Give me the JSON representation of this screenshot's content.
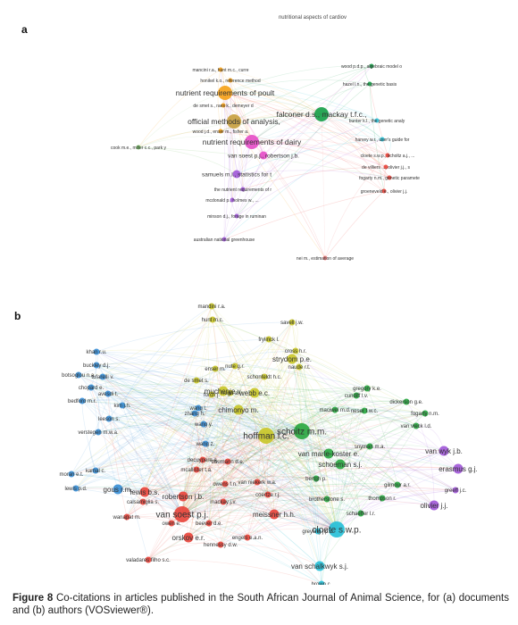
{
  "panels": {
    "a": {
      "letter": "a",
      "top_note": "nutritional aspects of cardiov",
      "nodes": [
        {
          "label": "mancini r.a., hunt m.c., curre",
          "color": "#f5a21a",
          "size": 1,
          "cluster": "orange"
        },
        {
          "label": "honikel k.o., reference method",
          "color": "#f5a21a",
          "size": 1,
          "cluster": "orange"
        },
        {
          "label": "nutrient requirements of poult",
          "color": "#f5a21a",
          "size": 3,
          "cluster": "orange"
        },
        {
          "label": "de smet s., raes k., demeyer d",
          "color": "#f5a21a",
          "size": 1,
          "cluster": "orange"
        },
        {
          "label": "official methods of analysis,",
          "color": "#c8a040",
          "size": 3,
          "cluster": "olive"
        },
        {
          "label": "wood j.d., enser m., fisher a.",
          "color": "#f5a21a",
          "size": 1,
          "cluster": "orange"
        },
        {
          "label": "nutrient requirements of dairy",
          "color": "#e64fc8",
          "size": 3,
          "cluster": "pink"
        },
        {
          "label": "van soest p.j., robertson j.b.",
          "color": "#e64fc8",
          "size": 2,
          "cluster": "pink"
        },
        {
          "label": "samuels m.l., statistics for t",
          "color": "#a259d9",
          "size": 2,
          "cluster": "purple"
        },
        {
          "label": "the nutrient requirements of r",
          "color": "#a259d9",
          "size": 1,
          "cluster": "purple"
        },
        {
          "label": "mcdonald p., holmes w., ...",
          "color": "#a259d9",
          "size": 1,
          "cluster": "purple"
        },
        {
          "label": "minson d.j., forage in ruminan",
          "color": "#a259d9",
          "size": 1,
          "cluster": "purple"
        },
        {
          "label": "australian national greenhouse",
          "color": "#a259d9",
          "size": 1,
          "cluster": "purple"
        },
        {
          "label": "cook m.e., miller c.c., park y",
          "color": "#7bc46a",
          "size": 1,
          "cluster": "lightgreen"
        },
        {
          "label": "wood p.d.p., algebraic model o",
          "color": "#18a04a",
          "size": 1,
          "cluster": "green"
        },
        {
          "label": "hazel l.n., the genetic basis",
          "color": "#18a04a",
          "size": 1,
          "cluster": "green"
        },
        {
          "label": "falconer d.s., mackay t.f.c.,",
          "color": "#18a04a",
          "size": 3,
          "cluster": "green"
        },
        {
          "label": "bunter k.l., the genetic analy",
          "color": "#2dc0d6",
          "size": 1,
          "cluster": "cyan"
        },
        {
          "label": "harvey w.r., user's guide for",
          "color": "#2dc0d6",
          "size": 1,
          "cluster": "cyan"
        },
        {
          "label": "cloete s.w.p., scholtz a.j., ...",
          "color": "#e8453c",
          "size": 1,
          "cluster": "red"
        },
        {
          "label": "de villiers ..., olivier j.j., s",
          "color": "#e8453c",
          "size": 1,
          "cluster": "red"
        },
        {
          "label": "fogarty n.m., genetic paramete",
          "color": "#e8453c",
          "size": 1,
          "cluster": "red"
        },
        {
          "label": "groeneveld e., olivier j.j.",
          "color": "#e8453c",
          "size": 1,
          "cluster": "red"
        },
        {
          "label": "nei m., estimation of average",
          "color": "#f07f7f",
          "size": 1,
          "cluster": "salmon"
        }
      ]
    },
    "b": {
      "letter": "b",
      "nodes": [
        {
          "label": "mandini r.a.",
          "color": "#c9c72a",
          "size": 1
        },
        {
          "label": "hunt m.c.",
          "color": "#c9c72a",
          "size": 1
        },
        {
          "label": "savell j.w.",
          "color": "#c9c72a",
          "size": 1
        },
        {
          "label": "frylinck l.",
          "color": "#c9c72a",
          "size": 1
        },
        {
          "label": "cross h.r.",
          "color": "#c9c72a",
          "size": 1
        },
        {
          "label": "strydom p.e.",
          "color": "#c9c72a",
          "size": 2
        },
        {
          "label": "naude r.t.",
          "color": "#c9c72a",
          "size": 1
        },
        {
          "label": "enser m.",
          "color": "#c9c72a",
          "size": 1
        },
        {
          "label": "nute g.r.",
          "color": "#c9c72a",
          "size": 1
        },
        {
          "label": "schonfeldt h.c.",
          "color": "#c9c72a",
          "size": 1
        },
        {
          "label": "de smet s.",
          "color": "#c9c72a",
          "size": 1
        },
        {
          "label": "muchenje v.",
          "color": "#c9c72a",
          "size": 2
        },
        {
          "label": "webb e.c.",
          "color": "#c9c72a",
          "size": 2
        },
        {
          "label": "forch j.",
          "color": "#c9c72a",
          "size": 1
        },
        {
          "label": "chimonyo m.",
          "color": "#c9c72a",
          "size": 2
        },
        {
          "label": "huga a.",
          "color": "#c9c72a",
          "size": 1
        },
        {
          "label": "hoffman l.c.",
          "color": "#c9c72a",
          "size": 3
        },
        {
          "label": "khan r.u.",
          "color": "#3b8fd6",
          "size": 1
        },
        {
          "label": "buckley d.j.",
          "color": "#3b8fd6",
          "size": 1
        },
        {
          "label": "botsoglou n.a.",
          "color": "#3b8fd6",
          "size": 1
        },
        {
          "label": "tufarelli v.",
          "color": "#3b8fd6",
          "size": 1
        },
        {
          "label": "chopard e.",
          "color": "#3b8fd6",
          "size": 1
        },
        {
          "label": "avesdi t.",
          "color": "#3b8fd6",
          "size": 1
        },
        {
          "label": "zhang h.",
          "color": "#3b8fd6",
          "size": 1
        },
        {
          "label": "wang l.",
          "color": "#3b8fd6",
          "size": 1
        },
        {
          "label": "bedford m.r.",
          "color": "#3b8fd6",
          "size": 1
        },
        {
          "label": "kim j.h.",
          "color": "#3b8fd6",
          "size": 1
        },
        {
          "label": "wang y.",
          "color": "#3b8fd6",
          "size": 1
        },
        {
          "label": "leeson s.",
          "color": "#3b8fd6",
          "size": 1
        },
        {
          "label": "verstegen m.w.a.",
          "color": "#3b8fd6",
          "size": 1
        },
        {
          "label": "wang z.",
          "color": "#3b8fd6",
          "size": 1
        },
        {
          "label": "moran e.t.",
          "color": "#3b8fd6",
          "size": 1
        },
        {
          "label": "kamal c.",
          "color": "#3b8fd6",
          "size": 1
        },
        {
          "label": "lewis p.d.",
          "color": "#3b8fd6",
          "size": 1
        },
        {
          "label": "gous r.m.",
          "color": "#3b8fd6",
          "size": 2
        },
        {
          "label": "decuypere e.",
          "color": "#e8453c",
          "size": 1
        },
        {
          "label": "baumann d.e.",
          "color": "#e8453c",
          "size": 1
        },
        {
          "label": "mcallister t.a.",
          "color": "#e8453c",
          "size": 1
        },
        {
          "label": "owens f.n.",
          "color": "#e8453c",
          "size": 1
        },
        {
          "label": "lewis b.s.",
          "color": "#e8453c",
          "size": 2
        },
        {
          "label": "robertson j.b.",
          "color": "#e8453c",
          "size": 2
        },
        {
          "label": "mackay j.v.",
          "color": "#e8453c",
          "size": 1
        },
        {
          "label": "calsamiglia s.",
          "color": "#e8453c",
          "size": 1
        },
        {
          "label": "van soest p.j.",
          "color": "#e8453c",
          "size": 3
        },
        {
          "label": "wanapat m.",
          "color": "#e8453c",
          "size": 1
        },
        {
          "label": "owen e.",
          "color": "#e8453c",
          "size": 1
        },
        {
          "label": "beever d.e.",
          "color": "#e8453c",
          "size": 1
        },
        {
          "label": "orskov e.r.",
          "color": "#e8453c",
          "size": 2
        },
        {
          "label": "hennessy d.w.",
          "color": "#e8453c",
          "size": 1
        },
        {
          "label": "engels e.a.n.",
          "color": "#e8453c",
          "size": 1
        },
        {
          "label": "valadares filho s.c.",
          "color": "#e8453c",
          "size": 1
        },
        {
          "label": "van niekerk w.a.",
          "color": "#e8453c",
          "size": 1
        },
        {
          "label": "coertze r.j.",
          "color": "#e8453c",
          "size": 1
        },
        {
          "label": "meissner h.h.",
          "color": "#e8453c",
          "size": 2
        },
        {
          "label": "gregory k.e.",
          "color": "#2aa842",
          "size": 1
        },
        {
          "label": "cundiff l.v.",
          "color": "#2aa842",
          "size": 1
        },
        {
          "label": "dickerson g.e.",
          "color": "#2aa842",
          "size": 1
        },
        {
          "label": "neser f.w.c.",
          "color": "#2aa842",
          "size": 1
        },
        {
          "label": "maciwel m.d.",
          "color": "#2aa842",
          "size": 1
        },
        {
          "label": "fogarty n.m.",
          "color": "#2aa842",
          "size": 1
        },
        {
          "label": "schoitz m.m.",
          "color": "#2aa842",
          "size": 3
        },
        {
          "label": "van vleck l.d.",
          "color": "#2aa842",
          "size": 1
        },
        {
          "label": "van marle-koster e.",
          "color": "#2aa842",
          "size": 2
        },
        {
          "label": "snyman m.a.",
          "color": "#2aa842",
          "size": 1
        },
        {
          "label": "schoeman s.j.",
          "color": "#2aa842",
          "size": 2
        },
        {
          "label": "bertgh p.",
          "color": "#2aa842",
          "size": 1
        },
        {
          "label": "brotherstone s.",
          "color": "#2aa842",
          "size": 1
        },
        {
          "label": "thompson r.",
          "color": "#2aa842",
          "size": 1
        },
        {
          "label": "schaeffer l.r.",
          "color": "#2aa842",
          "size": 1
        },
        {
          "label": "gilmour a.r.",
          "color": "#2aa842",
          "size": 1
        },
        {
          "label": "van wyk j.b.",
          "color": "#a259d9",
          "size": 2
        },
        {
          "label": "erasmus g.j.",
          "color": "#a259d9",
          "size": 2
        },
        {
          "label": "greeff j.c.",
          "color": "#a259d9",
          "size": 1
        },
        {
          "label": "olivier j.j.",
          "color": "#a259d9",
          "size": 2
        },
        {
          "label": "cloete s.w.p.",
          "color": "#28c0d8",
          "size": 3
        },
        {
          "label": "greyling j.p.c.",
          "color": "#28c0d8",
          "size": 1
        },
        {
          "label": "van schalkwyk s.j.",
          "color": "#28c0d8",
          "size": 2
        },
        {
          "label": "brown c.",
          "color": "#28c0d8",
          "size": 1
        }
      ]
    }
  },
  "caption": {
    "figure_label": "Figure 8",
    "text": " Co-citations in articles published in the South African Journal of Animal Science, for (a) documents and (b) authors (VOSviewer®)."
  }
}
